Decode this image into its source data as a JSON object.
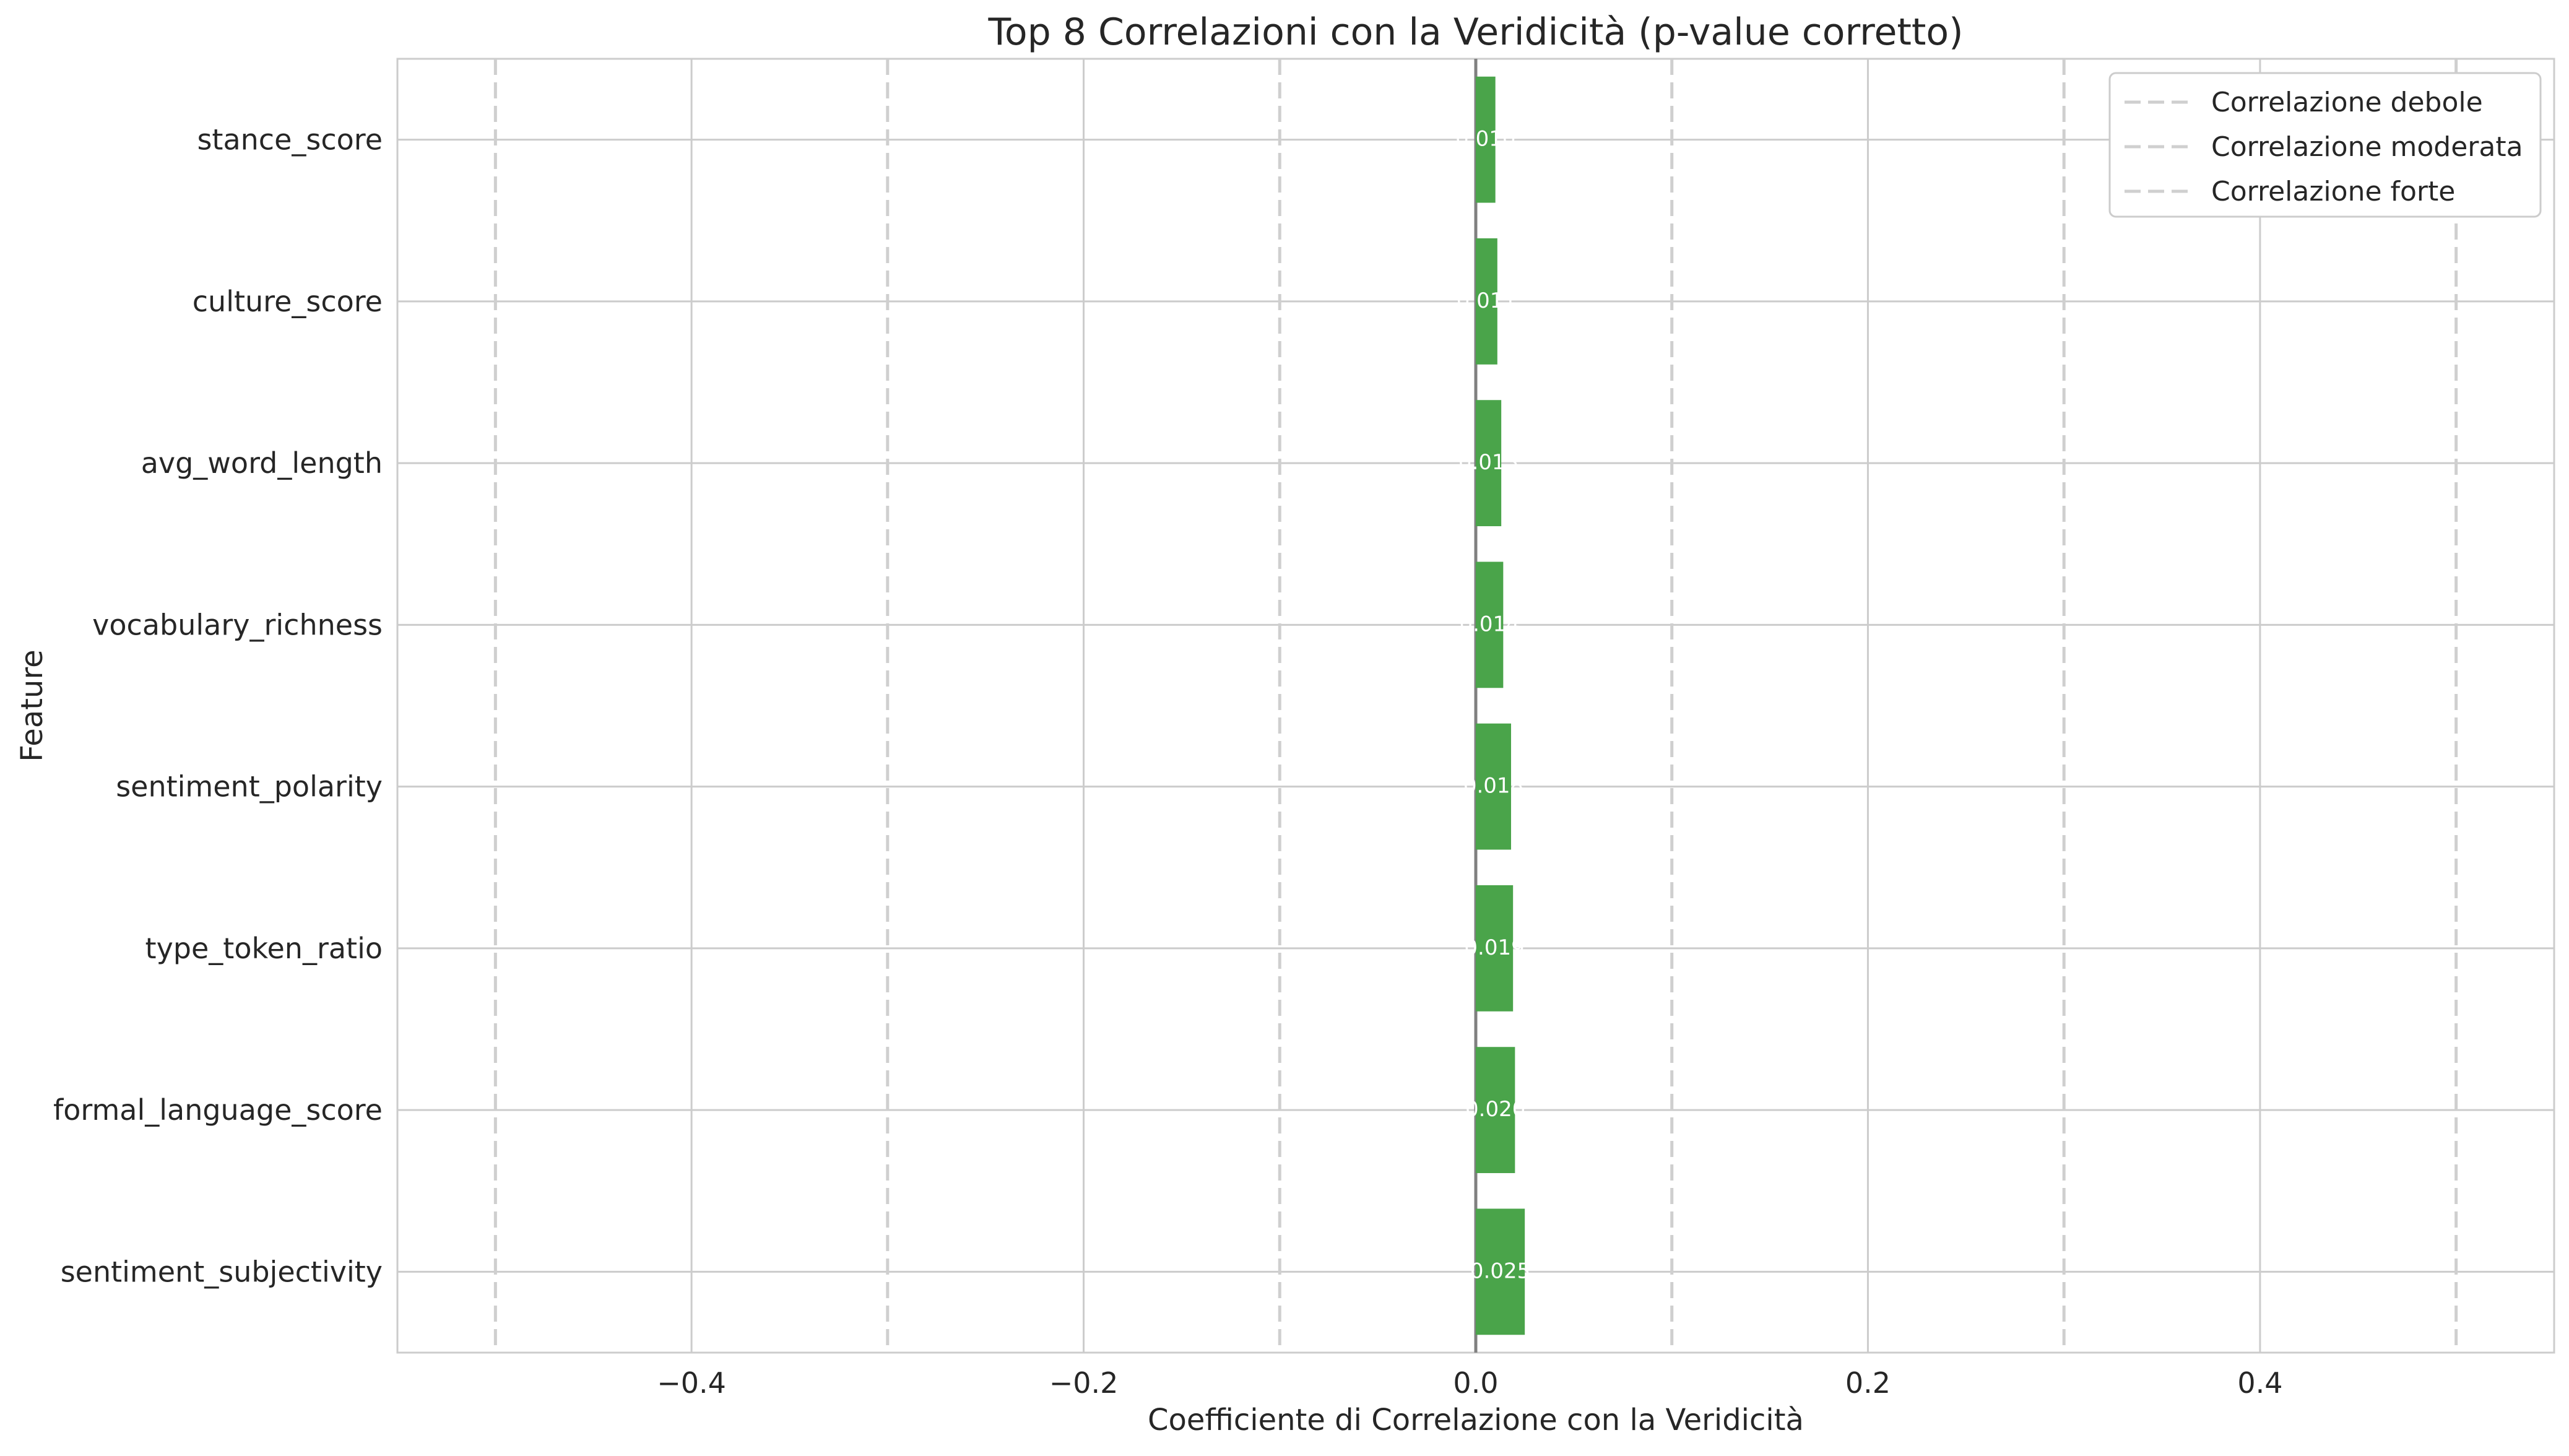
{
  "chart_data": {
    "type": "bar",
    "orientation": "horizontal",
    "title": "Top 8 Correlazioni con la Veridicità (p-value corretto)",
    "xlabel": "Coefficiente di Correlazione con la Veridicità",
    "ylabel": "Feature",
    "xlim": [
      -0.55,
      0.55
    ],
    "xticks": [
      -0.4,
      -0.2,
      0.0,
      0.2,
      0.4
    ],
    "xtick_labels": [
      "−0.4",
      "−0.2",
      "0.0",
      "0.2",
      "0.4"
    ],
    "grid": true,
    "categories": [
      "stance_score",
      "culture_score",
      "avg_word_length",
      "vocabulary_richness",
      "sentiment_polarity",
      "type_token_ratio",
      "formal_language_score",
      "sentiment_subjectivity"
    ],
    "values": [
      0.01,
      0.011,
      0.013,
      0.014,
      0.018,
      0.019,
      0.02,
      0.025
    ],
    "bar_color": "#4aa44a",
    "reference_lines": [
      {
        "name": "Correlazione debole",
        "values": [
          -0.1,
          0.1
        ]
      },
      {
        "name": "Correlazione moderata",
        "values": [
          -0.3,
          0.3
        ]
      },
      {
        "name": "Correlazione forte",
        "values": [
          -0.5,
          0.5
        ]
      }
    ],
    "legend_position": "top-right"
  }
}
